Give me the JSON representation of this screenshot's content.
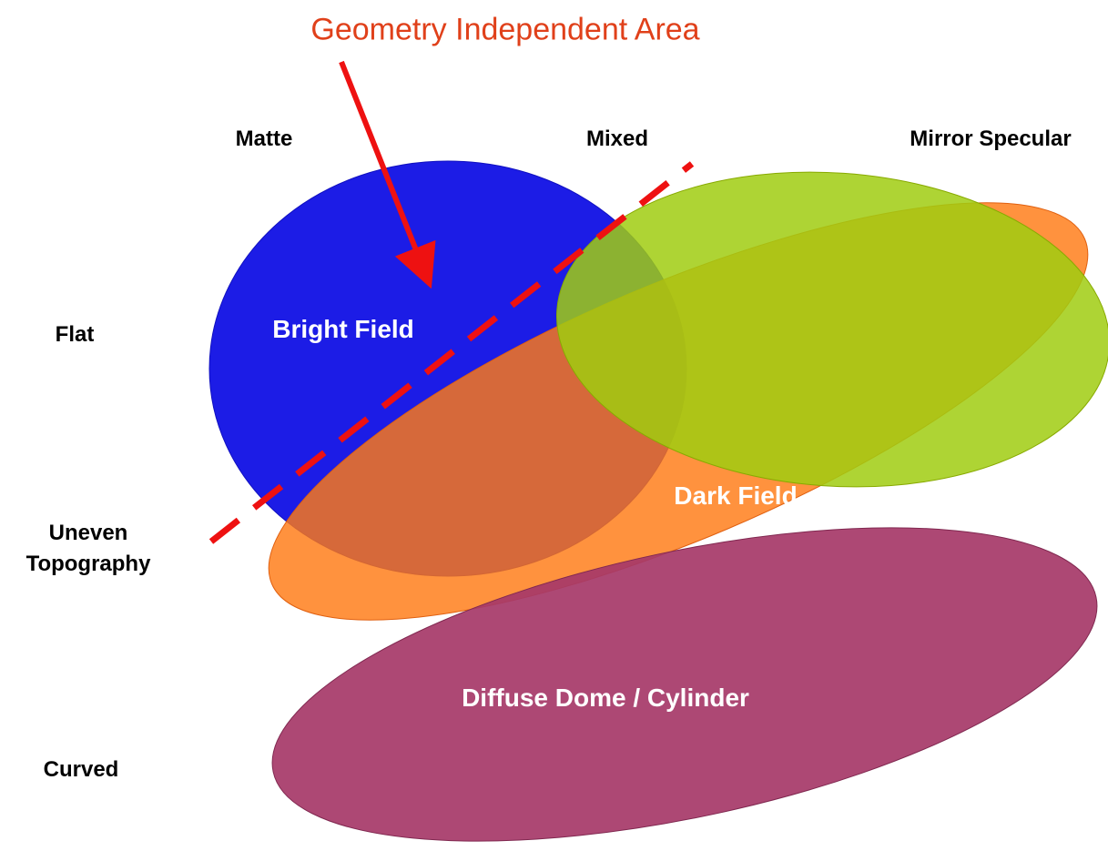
{
  "annotation": "Geometry Independent Area",
  "columns": [
    "Matte",
    "Mixed",
    "Mirror Specular"
  ],
  "rows": [
    "Flat",
    "Uneven Topography",
    "Curved"
  ],
  "regions": [
    "Bright Field",
    "Dark Field",
    "Diffuse Dome / Cylinder"
  ]
}
